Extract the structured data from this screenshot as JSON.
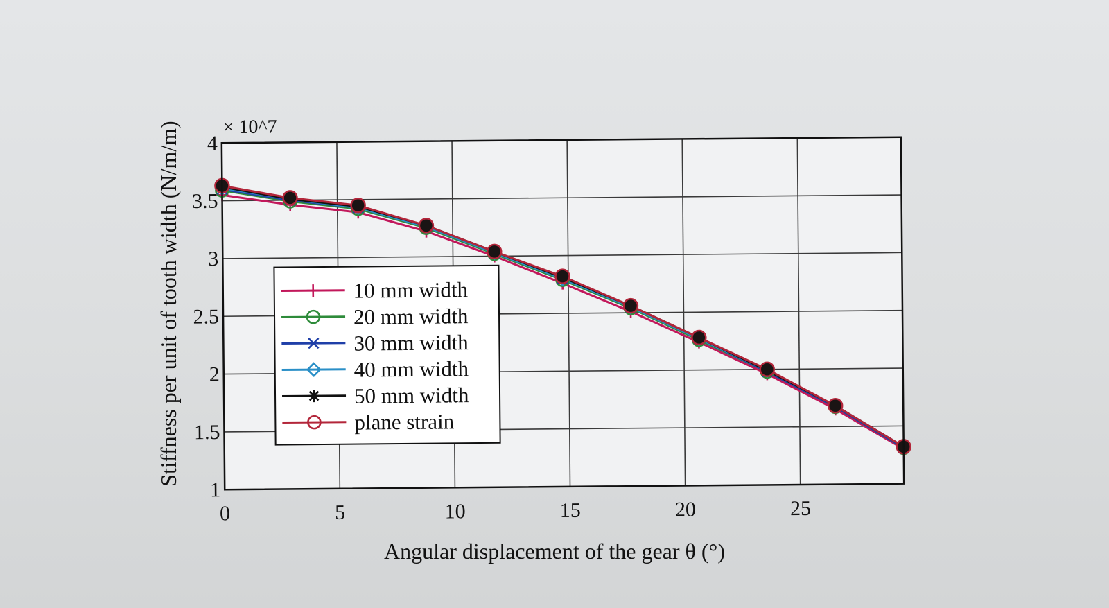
{
  "chart_data": {
    "type": "line",
    "title": "",
    "xlabel": "Angular displacement of the gear θ (°)",
    "ylabel": "Stiffness per unit of tooth width (N/m/m)",
    "y_exponent_label": "× 10^7",
    "y_multiplier": 10000000,
    "xlim": [
      0,
      29.5
    ],
    "ylim": [
      1,
      4
    ],
    "x_ticks": [
      "0",
      "5",
      "10",
      "15",
      "20",
      "25"
    ],
    "x_tick_values": [
      0,
      5,
      10,
      15,
      20,
      25
    ],
    "y_ticks": [
      "1",
      "1.5",
      "2",
      "2.5",
      "3",
      "3.5",
      "4"
    ],
    "y_tick_values": [
      1,
      1.5,
      2,
      2.5,
      3,
      3.5,
      4
    ],
    "grid": true,
    "legend_position": "left-middle",
    "x": [
      0,
      2.95,
      5.9,
      8.85,
      11.8,
      14.75,
      17.7,
      20.65,
      23.6,
      26.55,
      29.5
    ],
    "series": [
      {
        "name": "10 mm width",
        "color": "#c2185b",
        "marker": "plus",
        "values": [
          3.55,
          3.46,
          3.39,
          3.22,
          3.0,
          2.76,
          2.51,
          2.24,
          1.96,
          1.65,
          1.3
        ]
      },
      {
        "name": "20 mm width",
        "color": "#2e8b3a",
        "marker": "circle",
        "values": [
          3.59,
          3.49,
          3.42,
          3.25,
          3.02,
          2.79,
          2.54,
          2.26,
          1.98,
          1.67,
          1.31
        ]
      },
      {
        "name": "30 mm width",
        "color": "#1f3fa8",
        "marker": "x",
        "values": [
          3.6,
          3.5,
          3.43,
          3.26,
          3.03,
          2.8,
          2.55,
          2.27,
          1.98,
          1.67,
          1.31
        ]
      },
      {
        "name": "40 mm width",
        "color": "#2a8fc7",
        "marker": "diamond",
        "values": [
          3.61,
          3.51,
          3.43,
          3.26,
          3.03,
          2.8,
          2.55,
          2.27,
          1.99,
          1.68,
          1.32
        ]
      },
      {
        "name": "50 mm width",
        "color": "#111111",
        "marker": "star",
        "values": [
          3.62,
          3.51,
          3.44,
          3.27,
          3.04,
          2.81,
          2.56,
          2.28,
          1.99,
          1.68,
          1.32
        ]
      },
      {
        "name": "plane strain",
        "color": "#b3263a",
        "marker": "circle",
        "values": [
          3.63,
          3.52,
          3.45,
          3.27,
          3.04,
          2.82,
          2.56,
          2.28,
          2.0,
          1.68,
          1.32
        ]
      }
    ]
  }
}
